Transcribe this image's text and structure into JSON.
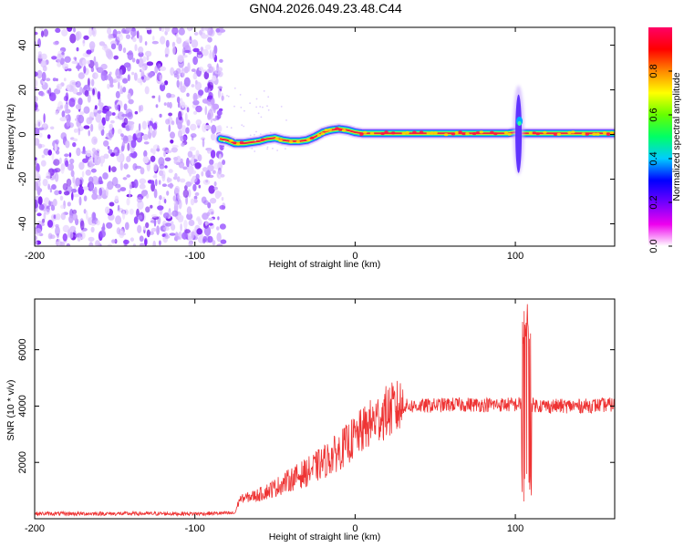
{
  "title": "GN04.2026.049.23.48.C44",
  "chart_data": [
    {
      "type": "heatmap",
      "name": "spectrogram",
      "xlabel": "Height of straight line (km)",
      "ylabel": "Frequency (Hz)",
      "xlim": [
        -200,
        162
      ],
      "ylim": [
        -50,
        48
      ],
      "xticks": [
        -200,
        -100,
        0,
        100
      ],
      "yticks": [
        -40,
        -20,
        0,
        20,
        40
      ],
      "noise_region_x": [
        -200,
        -82
      ],
      "ridge": {
        "x": [
          -84,
          -80,
          -75,
          -70,
          -65,
          -60,
          -55,
          -50,
          -45,
          -40,
          -35,
          -30,
          -25,
          -20,
          -15,
          -10,
          -5,
          0,
          5,
          10,
          20,
          40,
          60,
          80,
          95,
          100,
          105,
          110,
          120,
          130,
          140,
          150,
          162
        ],
        "freq": [
          -2,
          -2.5,
          -4,
          -4,
          -3.5,
          -3,
          -2,
          -1.5,
          -2.5,
          -3,
          -3,
          -2.5,
          -1,
          1,
          2,
          2.5,
          2,
          1,
          0.5,
          0.5,
          0.5,
          0.5,
          0.5,
          0.5,
          0.5,
          1,
          0.5,
          0.5,
          0.5,
          0.5,
          0.5,
          0.5,
          0.5
        ]
      },
      "burst": {
        "x": 102,
        "freq_range": [
          -18,
          22
        ]
      },
      "colorbar": {
        "label": "Normalized spectral amplitude",
        "range": [
          0,
          1
        ],
        "ticks": [
          "0.0",
          "0.2",
          "0.4",
          "0.6",
          "0.8"
        ],
        "colors": [
          "#ffffff",
          "#ee00ee",
          "#7000ff",
          "#0000ff",
          "#00ccff",
          "#00ff66",
          "#66ff00",
          "#ffff00",
          "#ff8800",
          "#ff0000",
          "#ff0066"
        ]
      }
    },
    {
      "type": "line",
      "name": "snr",
      "xlabel": "Height of straight line (km)",
      "ylabel": "SNR (10 * v/v)",
      "xlim": [
        -200,
        162
      ],
      "ylim": [
        0,
        7800
      ],
      "xticks": [
        -200,
        -100,
        0,
        100
      ],
      "yticks": [
        2000,
        4000,
        6000
      ],
      "color": "#ee3333",
      "trend": {
        "x": [
          -200,
          -100,
          -75,
          -72,
          -60,
          -50,
          -40,
          -30,
          -20,
          -10,
          0,
          10,
          20,
          30,
          40,
          60,
          80,
          100,
          105,
          110,
          120,
          140,
          162
        ],
        "y": [
          180,
          180,
          200,
          700,
          850,
          1100,
          1400,
          1650,
          2000,
          2400,
          2900,
          3400,
          3800,
          4000,
          4000,
          4050,
          4050,
          4050,
          4100,
          4050,
          4000,
          4000,
          4050
        ]
      },
      "spike": {
        "x_range": [
          104,
          110
        ],
        "y_range": [
          600,
          7700
        ]
      }
    }
  ]
}
